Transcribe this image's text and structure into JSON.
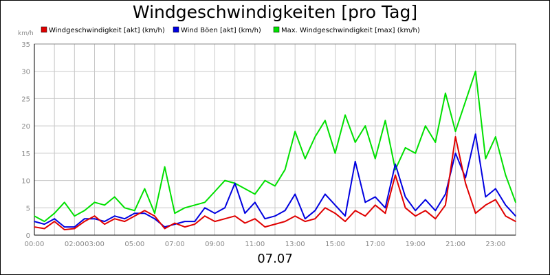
{
  "title": "Windgeschwindigkeiten [pro Tag]",
  "date_label": "07.07",
  "y_unit": "km/h",
  "chart_data": {
    "type": "line",
    "title": "Windgeschwindigkeiten [pro Tag]",
    "xlabel": "07.07",
    "ylabel": "km/h",
    "xlim": [
      0,
      24
    ],
    "ylim": [
      0,
      35
    ],
    "grid": true,
    "legend_position": "top",
    "x_ticks": [
      "00:00",
      "02:00",
      "03:00",
      "05:00",
      "07:00",
      "09:00",
      "11:00",
      "13:00",
      "15:00",
      "17:00",
      "19:00",
      "21:00",
      "23:00"
    ],
    "x_tick_hours": [
      0,
      2,
      3,
      5,
      7,
      9,
      11,
      13,
      15,
      17,
      19,
      21,
      23
    ],
    "y_ticks": [
      "0",
      "5",
      "10",
      "15",
      "20",
      "25",
      "30",
      "35"
    ],
    "y_tick_values": [
      0,
      5,
      10,
      15,
      20,
      25,
      30,
      35
    ],
    "x": [
      0,
      0.5,
      1,
      1.5,
      2,
      2.5,
      3,
      3.5,
      4,
      4.5,
      5,
      5.5,
      6,
      6.5,
      7,
      7.5,
      8,
      8.5,
      9,
      9.5,
      10,
      10.5,
      11,
      11.5,
      12,
      12.5,
      13,
      13.5,
      14,
      14.5,
      15,
      15.5,
      16,
      16.5,
      17,
      17.5,
      18,
      18.5,
      19,
      19.5,
      20,
      20.5,
      21,
      21.5,
      22,
      22.5,
      23,
      23.5,
      24
    ],
    "series": [
      {
        "name": "Windgeschwindigkeit [akt] (km/h)",
        "color": "#e00000",
        "values": [
          1.5,
          1.2,
          2.5,
          1.0,
          1.2,
          2.5,
          3.5,
          2.0,
          3.0,
          2.5,
          3.5,
          4.5,
          3.5,
          1.2,
          2.2,
          1.5,
          2.0,
          3.5,
          2.5,
          3.0,
          3.5,
          2.2,
          3.0,
          1.5,
          2.0,
          2.5,
          3.5,
          2.5,
          3.0,
          5.0,
          4.0,
          2.5,
          4.5,
          3.5,
          5.5,
          4.0,
          11.0,
          5.0,
          3.5,
          4.5,
          3.0,
          5.5,
          18.0,
          9.5,
          4.0,
          5.5,
          6.5,
          3.5,
          2.5
        ]
      },
      {
        "name": "Wind Böen [akt] (km/h)",
        "color": "#0000e0",
        "values": [
          2.5,
          2.0,
          3.0,
          1.5,
          1.5,
          3.0,
          3.0,
          2.5,
          3.5,
          3.0,
          4.0,
          4.0,
          3.0,
          1.5,
          2.0,
          2.5,
          2.5,
          5.0,
          4.0,
          5.0,
          9.5,
          4.0,
          6.0,
          3.0,
          3.5,
          4.5,
          7.5,
          3.0,
          4.5,
          7.5,
          5.5,
          3.5,
          13.5,
          6.0,
          7.0,
          5.0,
          13.0,
          7.0,
          4.5,
          6.5,
          4.5,
          7.5,
          15.0,
          10.5,
          18.5,
          7.0,
          8.5,
          5.5,
          3.5
        ]
      },
      {
        "name": "Max. Windgeschwindigkeit [max] (km/h)",
        "color": "#00e000",
        "values": [
          3.5,
          2.5,
          4.0,
          6.0,
          3.5,
          4.5,
          6.0,
          5.5,
          7.0,
          5.0,
          4.5,
          8.5,
          4.0,
          12.5,
          4.0,
          5.0,
          5.5,
          6.0,
          8.0,
          10.0,
          9.5,
          8.5,
          7.5,
          10.0,
          9.0,
          12.0,
          19.0,
          14.0,
          18.0,
          21.0,
          15.0,
          22.0,
          17.0,
          20.0,
          14.0,
          21.0,
          12.0,
          16.0,
          15.0,
          20.0,
          17.0,
          26.0,
          19.0,
          24.5,
          30.0,
          14.0,
          18.0,
          11.0,
          6.0
        ]
      }
    ]
  }
}
